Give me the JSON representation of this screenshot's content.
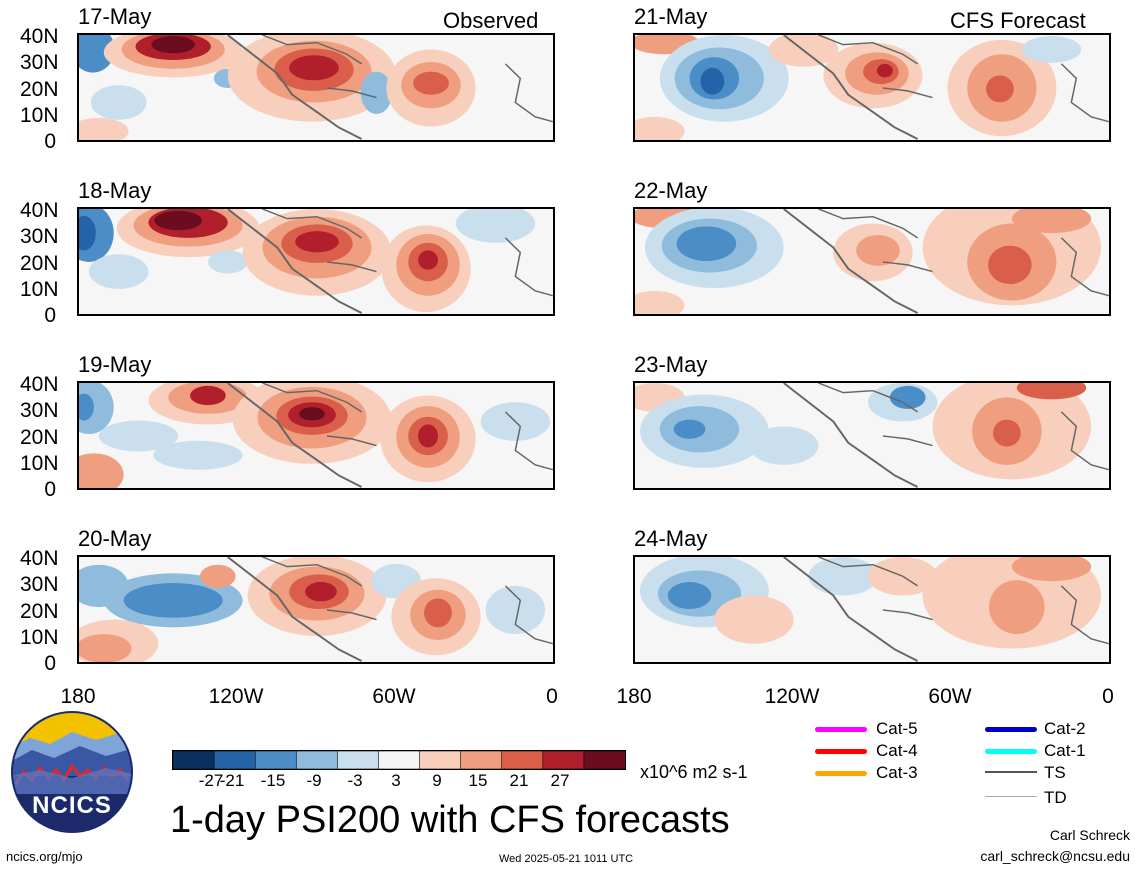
{
  "panels": [
    {
      "date": "17-May",
      "tag": "Observed"
    },
    {
      "date": "18-May",
      "tag": ""
    },
    {
      "date": "19-May",
      "tag": ""
    },
    {
      "date": "20-May",
      "tag": ""
    },
    {
      "date": "21-May",
      "tag": "CFS Forecast"
    },
    {
      "date": "22-May",
      "tag": ""
    },
    {
      "date": "23-May",
      "tag": ""
    },
    {
      "date": "24-May",
      "tag": ""
    }
  ],
  "lat_labels": [
    "40N",
    "30N",
    "20N",
    "10N",
    "0"
  ],
  "lon_labels": [
    "180",
    "120W",
    "60W",
    "0"
  ],
  "colorbar": {
    "ticks": [
      "-27",
      "-21",
      "-15",
      "-9",
      "-3",
      "3",
      "9",
      "15",
      "21",
      "27"
    ],
    "colors": [
      "#0b2f5e",
      "#2463a8",
      "#4b8ec7",
      "#8fbcdd",
      "#c9dfee",
      "#f5f5f5",
      "#f7cfbc",
      "#ef9f7f",
      "#d95f4a",
      "#b01f2b",
      "#6b0d1f"
    ],
    "units": "x10^6 m2 s-1"
  },
  "legend": {
    "items": [
      {
        "label": "Cat-5",
        "color": "#ff00ff"
      },
      {
        "label": "Cat-4",
        "color": "#ff0000"
      },
      {
        "label": "Cat-3",
        "color": "#ffa500"
      },
      {
        "label": "Cat-2",
        "color": "#0000cc"
      },
      {
        "label": "Cat-1",
        "color": "#00ffff"
      },
      {
        "label": "TS",
        "color": "#555555"
      },
      {
        "label": "TD",
        "color": "#aaaaaa"
      }
    ]
  },
  "title": "1-day PSI200 with CFS forecasts",
  "logo_text": "NCICS",
  "footer": {
    "site": "ncics.org/mjo",
    "timestamp": "Wed 2025-05-21 1011 UTC",
    "author": "Carl Schreck",
    "email": "carl_schreck@ncsu.edu"
  }
}
